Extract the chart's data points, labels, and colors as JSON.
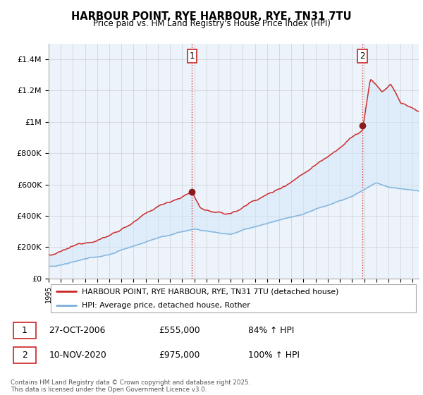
{
  "title": "HARBOUR POINT, RYE HARBOUR, RYE, TN31 7TU",
  "subtitle": "Price paid vs. HM Land Registry's House Price Index (HPI)",
  "ylim": [
    0,
    1500000
  ],
  "yticks": [
    0,
    200000,
    400000,
    600000,
    800000,
    1000000,
    1200000,
    1400000
  ],
  "ytick_labels": [
    "£0",
    "£200K",
    "£400K",
    "£600K",
    "£800K",
    "£1M",
    "£1.2M",
    "£1.4M"
  ],
  "sale1": {
    "date_num": 2006.82,
    "price": 555000,
    "label": "1",
    "date_str": "27-OCT-2006",
    "pct": "84%"
  },
  "sale2": {
    "date_num": 2020.86,
    "price": 975000,
    "label": "2",
    "date_str": "10-NOV-2020",
    "pct": "100%"
  },
  "hpi_color": "#7aaedb",
  "sale_color": "#cc2222",
  "vline_color": "#cc2222",
  "legend_label_sale": "HARBOUR POINT, RYE HARBOUR, RYE, TN31 7TU (detached house)",
  "legend_label_hpi": "HPI: Average price, detached house, Rother",
  "footnote": "Contains HM Land Registry data © Crown copyright and database right 2025.\nThis data is licensed under the Open Government Licence v3.0.",
  "bg_color": "#e8f0f8"
}
